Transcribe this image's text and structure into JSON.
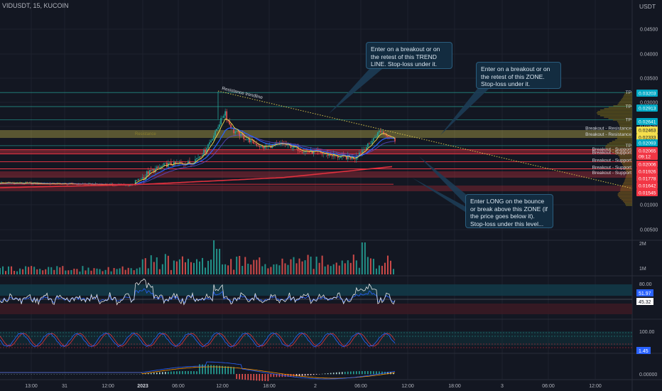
{
  "header": {
    "title": "VIDUSDT, 15, KUCOIN",
    "unit": "USDT"
  },
  "colors": {
    "background": "#131722",
    "grid": "#1e222d",
    "axis_text": "#b2b5be",
    "teal": "#26a69a",
    "red_candle": "#ef5350",
    "resistance_zone": "#f0dc54",
    "support_zone": "#e0313e",
    "trendline": "#d4c24a"
  },
  "price_axis": {
    "ticks": [
      "0.04500",
      "0.04000",
      "0.03500",
      "0.03000",
      "0.02500",
      "0.02000",
      "0.01500",
      "0.01000",
      "0.00500"
    ],
    "tags": [
      {
        "value": "0.03203",
        "color": "#00a8c4",
        "text_color": "#ffffff"
      },
      {
        "value": "0.02913",
        "color": "#00a8c4",
        "text_color": "#ffffff"
      },
      {
        "value": "0.02641",
        "color": "#00a8c4",
        "text_color": "#ffffff"
      },
      {
        "value": "0.02463",
        "color": "#f5df4d",
        "text_color": "#131722"
      },
      {
        "value": "0.02333",
        "color": "#f5df4d",
        "text_color": "#131722"
      },
      {
        "value": "0.02093",
        "color": "#00a8c4",
        "text_color": "#ffffff"
      },
      {
        "value": "0.02065",
        "color": "#f23645",
        "text_color": "#ffffff"
      },
      {
        "value": "09:12",
        "color": "#f23645",
        "text_color": "#ffffff"
      },
      {
        "value": "0.02006",
        "color": "#f23645",
        "text_color": "#ffffff"
      },
      {
        "value": "0.01926",
        "color": "#f23645",
        "text_color": "#ffffff"
      },
      {
        "value": "0.01778",
        "color": "#f23645",
        "text_color": "#ffffff"
      },
      {
        "value": "0.01642",
        "color": "#f23645",
        "text_color": "#ffffff"
      },
      {
        "value": "0.01545",
        "color": "#f23645",
        "text_color": "#ffffff"
      }
    ]
  },
  "level_labels": [
    {
      "text": "TP",
      "price": 0.03203
    },
    {
      "text": "TP",
      "price": 0.02913
    },
    {
      "text": "TP",
      "price": 0.02641
    },
    {
      "text": "Breakout - Resistance",
      "price": 0.02463
    },
    {
      "text": "Breakout - Resistance",
      "price": 0.02333
    },
    {
      "text": "TP",
      "price": 0.02093
    },
    {
      "text": "Breakout - Support",
      "price": 0.02012
    },
    {
      "text": "Breakout - Support",
      "price": 0.01951
    },
    {
      "text": "Breakout - Support",
      "price": 0.01806
    },
    {
      "text": "Breakout - Support",
      "price": 0.01669
    },
    {
      "text": "Breakout - Support",
      "price": 0.01565
    }
  ],
  "trendline_label": "Resistance trendline",
  "zone_label": "Resistance",
  "annotations": [
    {
      "text": "Enter on a breakout or on the retest of this TREND LINE. Stop-loss under it."
    },
    {
      "text": "Enter on a breakout or on the retest of this ZONE. Stop-loss under it."
    },
    {
      "text": "Enter LONG on the bounce or break above this ZONE (if the price goes below it). Stop-loss under this level..."
    }
  ],
  "volume_axis": [
    "2M",
    "1M"
  ],
  "rsi_panel": {
    "ticks": [
      "80.00"
    ],
    "tags": [
      {
        "value": "51.97",
        "color": "#2962ff",
        "text_color": "#ffffff"
      },
      {
        "value": "45.32",
        "color": "#ffffff",
        "text_color": "#131722"
      }
    ]
  },
  "stoch_panel": {
    "ticks": [
      "100.00"
    ],
    "tags": [
      {
        "value": "1.45",
        "color": "#2962ff",
        "text_color": "#ffffff"
      }
    ]
  },
  "macd_panel": {
    "ticks": [
      "0.00000"
    ]
  },
  "time_axis": [
    "13:00",
    "31",
    "12:00",
    "2023",
    "06:00",
    "12:00",
    "18:00",
    "2",
    "06:00",
    "12:00",
    "18:00",
    "3",
    "06:00",
    "12:00"
  ]
}
